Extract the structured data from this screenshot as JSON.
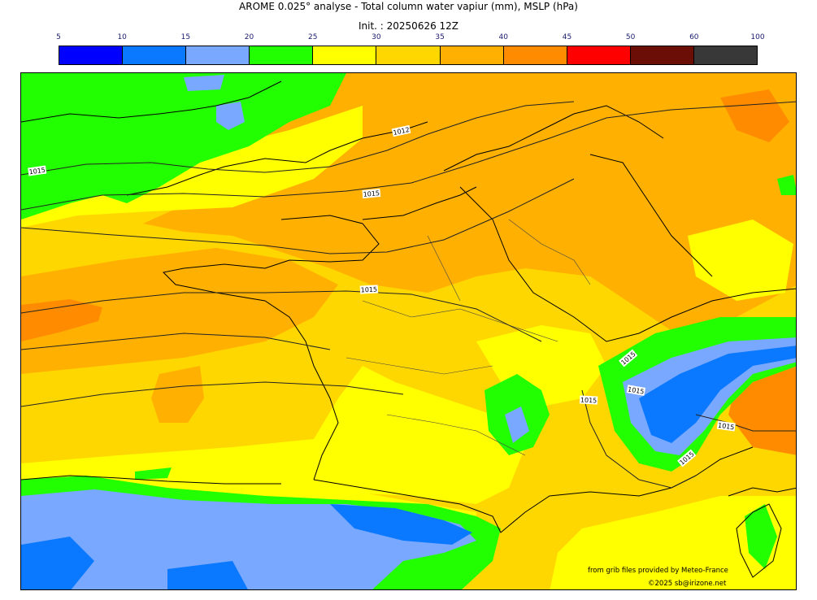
{
  "title": "AROME 0.025° analyse - Total column water vapiur (mm), MSLP (hPa)",
  "subtitle": "Init. : 20250626 12Z",
  "colorbar": {
    "ticks": [
      "5",
      "10",
      "15",
      "20",
      "25",
      "30",
      "35",
      "40",
      "45",
      "50",
      "60",
      "100"
    ],
    "colors": [
      "#0000ff",
      "#0a78ff",
      "#78a8ff",
      "#22ff00",
      "#ffff00",
      "#ffd700",
      "#ffb000",
      "#ff8c00",
      "#ff0000",
      "#6b0e06",
      "#383838"
    ]
  },
  "isobars": {
    "labels": [
      "1015",
      "1012",
      "1015",
      "1015",
      "1015",
      "1015",
      "1015",
      "1015",
      "1015"
    ]
  },
  "credits": {
    "source": "from grib files provided by Meteo-France",
    "copyright": "©2025 sb@irizone.net"
  }
}
